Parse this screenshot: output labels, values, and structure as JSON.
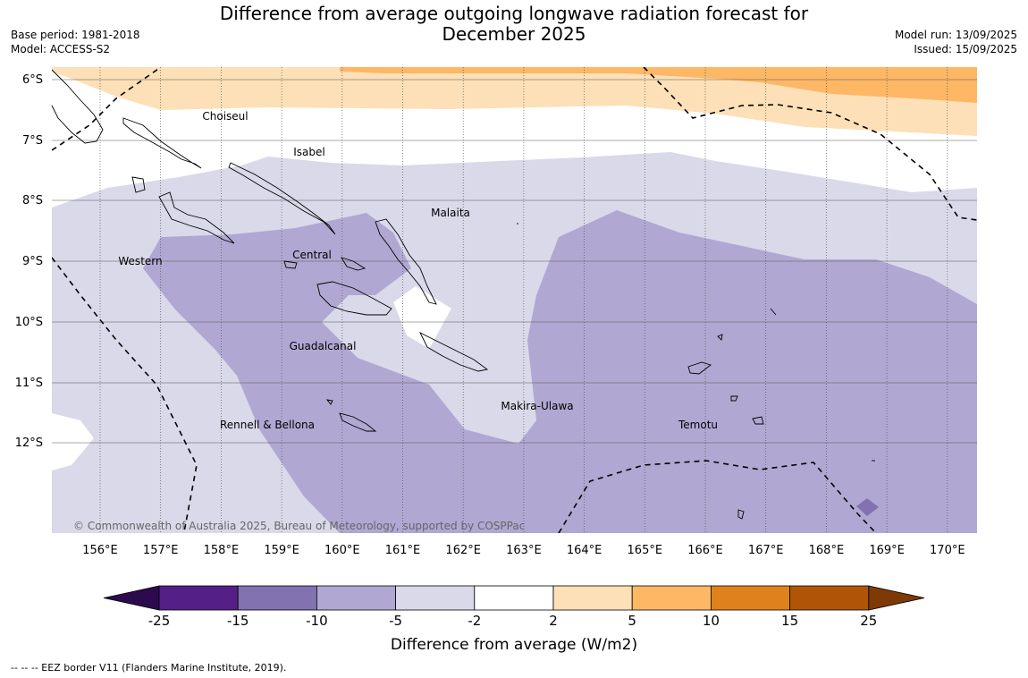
{
  "title": {
    "line1": "Difference from average outgoing longwave radiation forecast for",
    "line2": "December 2025"
  },
  "meta": {
    "base_period": "Base period: 1981-2018",
    "model": "Model: ACCESS-S2",
    "model_run": "Model run: 13/09/2025",
    "issued": "Issued: 15/09/2025"
  },
  "map": {
    "lat_labels": [
      "6°S",
      "7°S",
      "8°S",
      "9°S",
      "10°S",
      "11°S",
      "12°S"
    ],
    "lon_labels": [
      "156°E",
      "157°E",
      "158°E",
      "159°E",
      "160°E",
      "161°E",
      "162°E",
      "163°E",
      "164°E",
      "165°E",
      "166°E",
      "167°E",
      "168°E",
      "169°E",
      "170°E"
    ],
    "regions": [
      "Choiseul",
      "Isabel",
      "Malaita",
      "Western",
      "Central",
      "Guadalcanal",
      "Makira-Ulawa",
      "Rennell & Bellona",
      "Temotu"
    ],
    "copyright": "© Commonwealth of Australia 2025, Bureau of Meteorology, supported by COSPPac"
  },
  "colorbar": {
    "label": "Difference from average (W/m2)",
    "ticks": [
      "-25",
      "-15",
      "-10",
      "-5",
      "-2",
      "2",
      "5",
      "10",
      "15",
      "25"
    ],
    "colors": [
      "#541f87",
      "#8272b0",
      "#b0a8d2",
      "#d9d9ea",
      "#ffffff",
      "#fde0b7",
      "#fdb765",
      "#e0821c",
      "#b05508"
    ],
    "extend_low_color": "#2d0a4d",
    "extend_high_color": "#7d3a05"
  },
  "footer": "--  --  -- EEZ border V11 (Flanders Marine Institute, 2019)."
}
